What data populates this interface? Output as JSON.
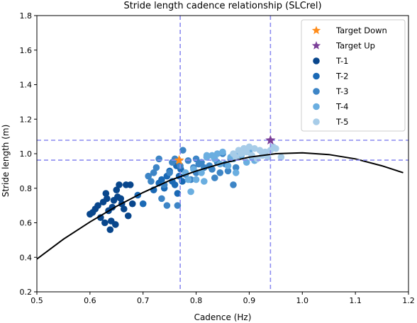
{
  "chart_data": {
    "type": "scatter",
    "title": "Stride length cadence relationship (SLCrel)",
    "xlabel": "Cadence (Hz)",
    "ylabel": "Stride length (m)",
    "xlim": [
      0.5,
      1.2
    ],
    "ylim": [
      0.2,
      1.8
    ],
    "xticks": [
      0.5,
      0.6,
      0.7,
      0.8,
      0.9,
      1.0,
      1.1,
      1.2
    ],
    "xtick_labels": [
      "0.5",
      "0.6",
      "0.7",
      "0.8",
      "0.9",
      "1.0",
      "1.1",
      "1.2"
    ],
    "yticks": [
      0.2,
      0.4,
      0.6,
      0.8,
      1.0,
      1.2,
      1.4,
      1.6,
      1.8
    ],
    "ytick_labels": [
      "0.2",
      "0.4",
      "0.6",
      "0.8",
      "1.0",
      "1.2",
      "1.4",
      "1.6",
      "1.8"
    ],
    "grid": false,
    "legend_position": "top-right",
    "curve": {
      "x": [
        0.5,
        0.55,
        0.6,
        0.65,
        0.7,
        0.75,
        0.8,
        0.85,
        0.9,
        0.95,
        1.0,
        1.05,
        1.1,
        1.15,
        1.19
      ],
      "y": [
        0.39,
        0.505,
        0.605,
        0.695,
        0.775,
        0.845,
        0.9,
        0.945,
        0.98,
        1.0,
        1.005,
        0.995,
        0.97,
        0.93,
        0.89
      ],
      "color": "#000000"
    },
    "reference_lines": {
      "vertical": [
        0.77,
        0.94
      ],
      "horizontal": [
        0.963,
        1.078
      ],
      "color": "#8c8cf0"
    },
    "targets": [
      {
        "name": "Target Down",
        "x": 0.768,
        "y": 0.962,
        "color": "#ff8c1a"
      },
      {
        "name": "Target Up",
        "x": 0.94,
        "y": 1.078,
        "color": "#7b3f98"
      }
    ],
    "series": [
      {
        "name": "T-1",
        "color": "#08468c",
        "points": [
          [
            0.6,
            0.65
          ],
          [
            0.605,
            0.66
          ],
          [
            0.61,
            0.68
          ],
          [
            0.615,
            0.7
          ],
          [
            0.62,
            0.63
          ],
          [
            0.625,
            0.72
          ],
          [
            0.628,
            0.6
          ],
          [
            0.63,
            0.77
          ],
          [
            0.632,
            0.74
          ],
          [
            0.635,
            0.67
          ],
          [
            0.638,
            0.56
          ],
          [
            0.64,
            0.61
          ],
          [
            0.642,
            0.69
          ],
          [
            0.645,
            0.73
          ],
          [
            0.648,
            0.59
          ],
          [
            0.65,
            0.79
          ],
          [
            0.652,
            0.75
          ],
          [
            0.655,
            0.82
          ],
          [
            0.658,
            0.74
          ],
          [
            0.66,
            0.71
          ],
          [
            0.664,
            0.68
          ],
          [
            0.668,
            0.82
          ],
          [
            0.672,
            0.64
          ],
          [
            0.676,
            0.82
          ],
          [
            0.68,
            0.71
          ]
        ]
      },
      {
        "name": "T-2",
        "color": "#1a69b5",
        "points": [
          [
            0.69,
            0.76
          ],
          [
            0.7,
            0.71
          ],
          [
            0.72,
            0.79
          ],
          [
            0.73,
            0.83
          ],
          [
            0.735,
            0.85
          ],
          [
            0.74,
            0.8
          ],
          [
            0.745,
            0.87
          ],
          [
            0.75,
            0.9
          ],
          [
            0.755,
            0.84
          ],
          [
            0.76,
            0.82
          ],
          [
            0.763,
            0.93
          ],
          [
            0.765,
            0.77
          ],
          [
            0.768,
            0.87
          ],
          [
            0.771,
            0.91
          ],
          [
            0.774,
            0.84
          ]
        ]
      },
      {
        "name": "T-3",
        "color": "#3d85c6",
        "points": [
          [
            0.71,
            0.87
          ],
          [
            0.715,
            0.84
          ],
          [
            0.72,
            0.89
          ],
          [
            0.725,
            0.92
          ],
          [
            0.73,
            0.97
          ],
          [
            0.735,
            0.74
          ],
          [
            0.74,
            0.82
          ],
          [
            0.745,
            0.7
          ],
          [
            0.75,
            0.89
          ],
          [
            0.755,
            0.95
          ],
          [
            0.76,
            0.97
          ],
          [
            0.765,
            0.7
          ],
          [
            0.77,
            0.93
          ],
          [
            0.775,
            1.02
          ],
          [
            0.78,
            0.88
          ],
          [
            0.785,
            0.96
          ],
          [
            0.79,
            0.85
          ],
          [
            0.795,
            0.92
          ],
          [
            0.8,
            0.89
          ],
          [
            0.805,
            0.94
          ],
          [
            0.81,
            0.95
          ],
          [
            0.815,
            0.92
          ],
          [
            0.82,
            0.98
          ],
          [
            0.825,
            0.93
          ],
          [
            0.83,
            0.91
          ],
          [
            0.835,
            0.86
          ],
          [
            0.84,
            0.95
          ],
          [
            0.845,
            0.89
          ],
          [
            0.85,
            1.0
          ],
          [
            0.855,
            0.94
          ],
          [
            0.86,
            0.9
          ],
          [
            0.865,
            0.97
          ],
          [
            0.87,
            0.82
          ],
          [
            0.875,
            0.92
          ],
          [
            0.8,
            0.97
          ]
        ]
      },
      {
        "name": "T-4",
        "color": "#6aaee0",
        "points": [
          [
            0.78,
            0.89
          ],
          [
            0.785,
            0.85
          ],
          [
            0.79,
            0.78
          ],
          [
            0.795,
            0.91
          ],
          [
            0.8,
            0.85
          ],
          [
            0.81,
            0.89
          ],
          [
            0.815,
            0.84
          ],
          [
            0.82,
            0.98
          ],
          [
            0.83,
            0.99
          ],
          [
            0.835,
            0.97
          ],
          [
            0.84,
            1.0
          ],
          [
            0.845,
            0.94
          ],
          [
            0.85,
            1.01
          ],
          [
            0.86,
            0.93
          ],
          [
            0.865,
            0.98
          ],
          [
            0.87,
            0.97
          ],
          [
            0.875,
            0.89
          ],
          [
            0.88,
            1.0
          ],
          [
            0.885,
            0.99
          ],
          [
            0.89,
            1.03
          ],
          [
            0.895,
            0.95
          ],
          [
            0.9,
            1.01
          ],
          [
            0.905,
            0.98
          ],
          [
            0.91,
            0.96
          ],
          [
            0.82,
            0.99
          ]
        ]
      },
      {
        "name": "T-5",
        "color": "#a7cce8",
        "points": [
          [
            0.87,
            1.0
          ],
          [
            0.875,
            0.98
          ],
          [
            0.88,
            1.02
          ],
          [
            0.885,
            1.0
          ],
          [
            0.89,
            1.03
          ],
          [
            0.895,
            1.01
          ],
          [
            0.9,
            1.04
          ],
          [
            0.905,
            0.99
          ],
          [
            0.91,
            1.03
          ],
          [
            0.915,
            0.97
          ],
          [
            0.92,
            1.02
          ],
          [
            0.925,
            0.99
          ],
          [
            0.93,
            1.01
          ],
          [
            0.935,
            0.98
          ],
          [
            0.94,
            1.02
          ],
          [
            0.945,
            1.04
          ],
          [
            0.95,
            1.03
          ],
          [
            0.96,
            0.98
          ],
          [
            0.925,
            1.0
          ]
        ]
      }
    ]
  }
}
